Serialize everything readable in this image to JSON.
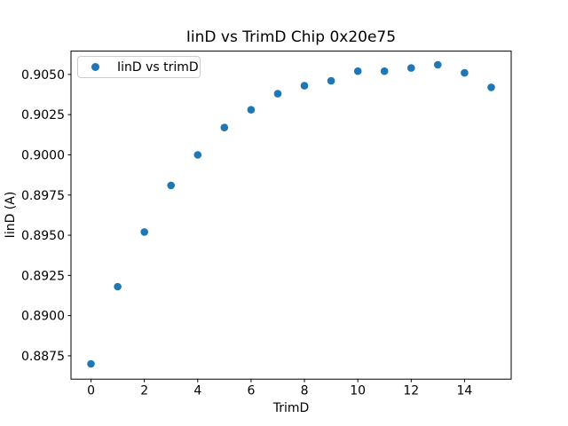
{
  "chart_data": {
    "type": "scatter",
    "title": "IinD vs TrimD Chip 0x20e75",
    "xlabel": "TrimD",
    "ylabel": "IinD (A)",
    "series": [
      {
        "name": "IinD vs trimD",
        "marker": "circle",
        "color": "#1f77b4",
        "x": [
          0,
          1,
          2,
          3,
          4,
          5,
          6,
          7,
          8,
          9,
          10,
          11,
          12,
          13,
          14,
          15
        ],
        "y": [
          0.887,
          0.8918,
          0.8952,
          0.8981,
          0.9,
          0.9017,
          0.9028,
          0.9038,
          0.9043,
          0.9046,
          0.9052,
          0.9052,
          0.9054,
          0.9056,
          0.9051,
          0.9042
        ]
      }
    ],
    "xlim": [
      -0.75,
      15.75
    ],
    "ylim": [
      0.88605,
      0.90645
    ],
    "x_ticks": [
      0,
      2,
      4,
      6,
      8,
      10,
      12,
      14
    ],
    "x_tick_labels": [
      "0",
      "2",
      "4",
      "6",
      "8",
      "10",
      "12",
      "14"
    ],
    "y_ticks": [
      0.8875,
      0.89,
      0.8925,
      0.895,
      0.8975,
      0.9,
      0.9025,
      0.905
    ],
    "y_tick_labels": [
      "0.8875",
      "0.8900",
      "0.8925",
      "0.8950",
      "0.8975",
      "0.9000",
      "0.9025",
      "0.9050"
    ],
    "grid": false,
    "marker_radius_px": 4.3,
    "axis_color": "#000000",
    "text_color": "#000000",
    "legend": {
      "visible": true,
      "position": "upper-left",
      "entries": [
        {
          "label": "IinD vs trimD",
          "color": "#1f77b4",
          "marker": "circle"
        }
      ]
    }
  }
}
